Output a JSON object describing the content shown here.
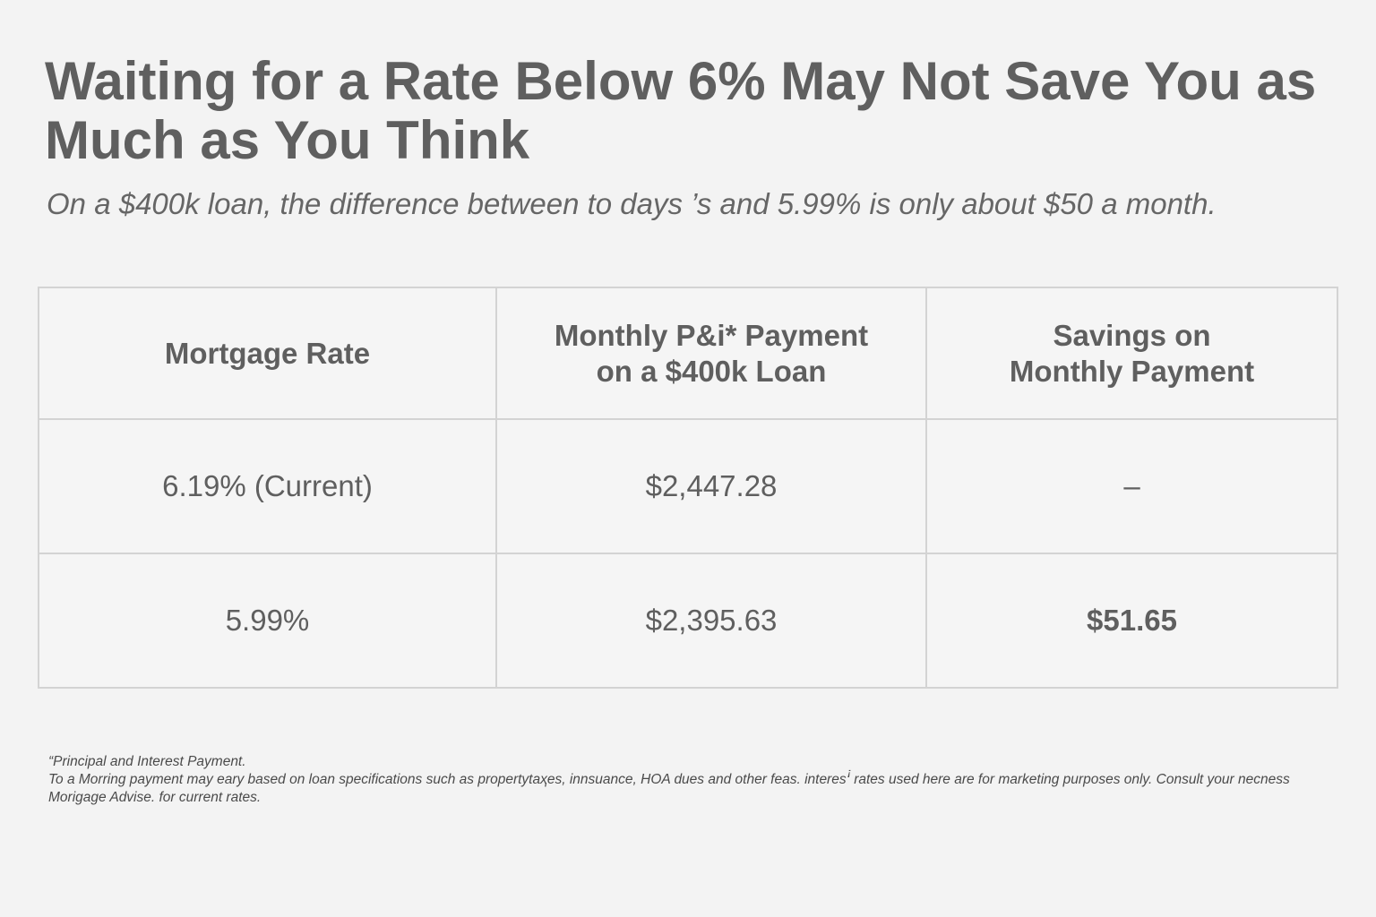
{
  "header": {
    "title": "Waiting for a Rate Below 6% May Not Save You as Much as You Think",
    "subtitle": "On a $400k loan, the difference between to days ’s and 5.99% is only about $50 a month."
  },
  "table": {
    "headers": [
      {
        "line1": "Mortgage Rate",
        "line2": ""
      },
      {
        "line1": "Monthly P&i* Payment",
        "line2": "on a $400k Loan"
      },
      {
        "line1": "Savings on",
        "line2": "Monthly Payment"
      }
    ],
    "rows": [
      {
        "rate": "6.19% (Current)",
        "payment": "$2,447.28",
        "savings": "–"
      },
      {
        "rate": "5.99%",
        "payment": "$2,395.63",
        "savings": "$51.65"
      }
    ]
  },
  "footnote": {
    "line1": "“Principal and Interest Payment.",
    "line2": "To a Morring payment may eary based on loan specifications such as propertytaҳes, innsuance, HOA dues and other feas. interesꜞ rates used here are for marketing purposes only. Consult your necness Morigage Advise. for current rates."
  },
  "colors": {
    "background": "#f3f3f3",
    "text": "#5f5f5f",
    "grid": "#d3d3d3"
  }
}
